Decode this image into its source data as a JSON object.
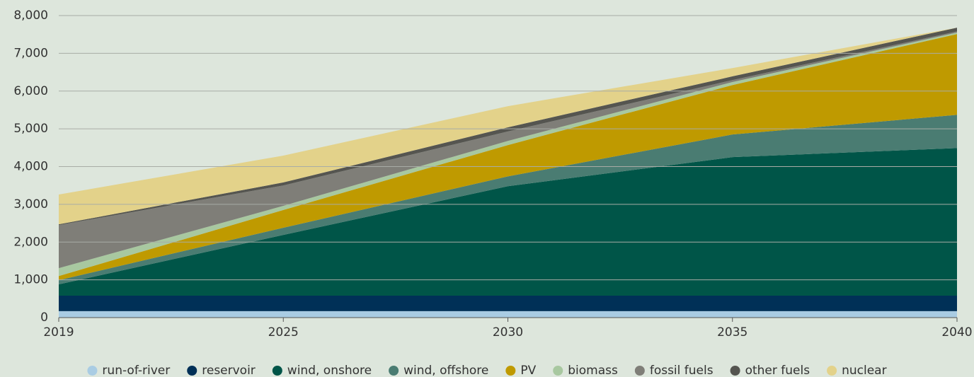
{
  "chart_data": {
    "type": "stacked_area",
    "categories": [
      "2019",
      "2025",
      "2030",
      "2035",
      "2040"
    ],
    "series": [
      {
        "name": "run-of-river",
        "color": "#a9cce3",
        "values": [
          170,
          170,
          170,
          170,
          170
        ]
      },
      {
        "name": "reservoir",
        "color": "#003057",
        "values": [
          410,
          410,
          410,
          410,
          410
        ]
      },
      {
        "name": "wind, onshore",
        "color": "#005548",
        "values": [
          300,
          1610,
          2900,
          3670,
          3910
        ]
      },
      {
        "name": "wind, offshore",
        "color": "#4a7c72",
        "values": [
          110,
          190,
          260,
          600,
          880
        ]
      },
      {
        "name": "PV",
        "color": "#bf9a00",
        "values": [
          110,
          470,
          830,
          1310,
          2140
        ]
      },
      {
        "name": "biomass",
        "color": "#a8c8a0",
        "values": [
          210,
          110,
          110,
          80,
          40
        ]
      },
      {
        "name": "fossil fuels",
        "color": "#7f7e78",
        "values": [
          1140,
          540,
          250,
          50,
          30
        ]
      },
      {
        "name": "other fuels",
        "color": "#555550",
        "values": [
          20,
          80,
          110,
          100,
          100
        ]
      },
      {
        "name": "nuclear",
        "color": "#e3d28a",
        "values": [
          790,
          710,
          560,
          220,
          0
        ]
      }
    ],
    "ylim": [
      0,
      8000
    ],
    "yticks": [
      0,
      {
        "value": 1000,
        "label": "1,000"
      },
      {
        "value": 2000,
        "label": "2,000"
      },
      {
        "value": 3000,
        "label": "3,000"
      },
      {
        "value": 4000,
        "label": "4,000"
      },
      {
        "value": 5000,
        "label": "5,000"
      },
      {
        "value": 6000,
        "label": "6,000"
      },
      {
        "value": 7000,
        "label": "7,000"
      },
      {
        "value": 8000,
        "label": "8,000"
      }
    ],
    "grid": true,
    "legend": "bottom"
  }
}
